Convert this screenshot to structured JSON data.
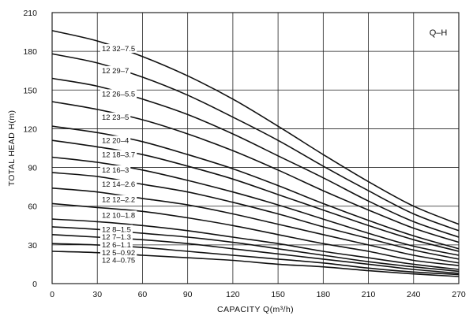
{
  "chart_data": {
    "type": "line",
    "title": "",
    "corner_label": "Q–H",
    "xlabel": "CAPACITY  Q(m³/h)",
    "ylabel": "TOTAL HEAD  H(m)",
    "xlim": [
      0,
      270
    ],
    "ylim": [
      0,
      210
    ],
    "grid": true,
    "x_ticks": [
      "0",
      "30",
      "60",
      "90",
      "120",
      "150",
      "180",
      "210",
      "240",
      "270"
    ],
    "y_ticks": [
      "0",
      "30",
      "60",
      "90",
      "120",
      "150",
      "180",
      "210"
    ],
    "x": [
      0,
      30,
      60,
      90,
      120,
      150,
      180,
      210,
      240,
      270
    ],
    "series": [
      {
        "name": "12 32–7.5",
        "values": [
          196,
          188,
          176,
          161,
          143,
          122,
          100,
          79,
          60,
          46
        ]
      },
      {
        "name": "12 29–7",
        "values": [
          178,
          171,
          160,
          146,
          129,
          111,
          91,
          72,
          54,
          41
        ]
      },
      {
        "name": "12 26–5.5",
        "values": [
          159,
          153,
          143,
          131,
          116,
          99,
          82,
          64,
          48,
          36
        ]
      },
      {
        "name": "12 23–5",
        "values": [
          141,
          135,
          127,
          116,
          103,
          88,
          72,
          57,
          43,
          32
        ]
      },
      {
        "name": "12 20–4",
        "values": [
          122,
          117,
          110,
          100,
          89,
          76,
          62,
          49,
          37,
          27
        ]
      },
      {
        "name": "12 18–3.7",
        "values": [
          111,
          106,
          100,
          91,
          81,
          69,
          57,
          45,
          34,
          25
        ]
      },
      {
        "name": "12 16–3",
        "values": [
          98,
          94,
          88,
          80,
          71,
          61,
          50,
          39,
          29,
          22
        ]
      },
      {
        "name": "12 14–2.6",
        "values": [
          86,
          83,
          77,
          71,
          63,
          54,
          44,
          35,
          26,
          19
        ]
      },
      {
        "name": "12 12–2.2",
        "values": [
          74,
          71,
          66,
          61,
          54,
          46,
          38,
          30,
          22,
          16
        ]
      },
      {
        "name": "12 10–1.8",
        "values": [
          62,
          59,
          56,
          51,
          45,
          38,
          31,
          25,
          18,
          14
        ]
      },
      {
        "name": "12 8–1.5",
        "values": [
          50,
          48,
          45,
          41,
          36,
          31,
          25,
          20,
          15,
          11
        ]
      },
      {
        "name": "12 7–1.3",
        "values": [
          44,
          42,
          39,
          36,
          32,
          27,
          22,
          17,
          13,
          9.5
        ]
      },
      {
        "name": "12 6–1.1",
        "values": [
          38,
          36,
          34,
          31,
          27,
          23,
          19,
          15,
          11,
          8
        ]
      },
      {
        "name": "12 5–0.92",
        "values": [
          31,
          30,
          28,
          25,
          22,
          19,
          16,
          12,
          9,
          7
        ]
      },
      {
        "name": "12 4–0.75",
        "values": [
          25,
          24,
          22,
          20,
          18,
          15,
          13,
          10,
          7.5,
          5.5
        ]
      }
    ]
  }
}
